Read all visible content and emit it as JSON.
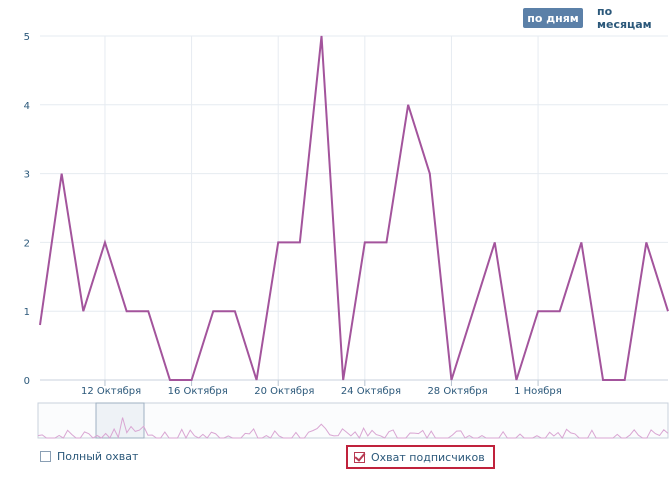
{
  "toggles": {
    "by_day": "по дням",
    "by_month": "по месяцам"
  },
  "legend": {
    "full_reach": {
      "label": "Полный охват",
      "checked": false
    },
    "subscribers_reach": {
      "label": "Охват подписчиков",
      "checked": true
    }
  },
  "colors": {
    "line": "#a3549c",
    "grid": "#e6ebf1",
    "axis_text": "#2b587a",
    "highlight": "#c0223c"
  },
  "chart_data": {
    "type": "line",
    "title": "",
    "xlabel": "",
    "ylabel": "",
    "ylim": [
      0,
      5
    ],
    "y_ticks": [
      "0",
      "1",
      "2",
      "3",
      "4",
      "5"
    ],
    "x_tick_labels": [
      "12 Октября",
      "16 Октября",
      "20 Октября",
      "24 Октября",
      "28 Октября",
      "1 Ноября"
    ],
    "x_tick_index": [
      3,
      7,
      11,
      15,
      19,
      23
    ],
    "grid": true,
    "series": [
      {
        "values": [
          0.8,
          3,
          1,
          2,
          1,
          1,
          0,
          0,
          1,
          1,
          0,
          2,
          2,
          5,
          0,
          2,
          2,
          4,
          3,
          0,
          1,
          2,
          0,
          1,
          1,
          2,
          0,
          0,
          2,
          1
        ]
      }
    ]
  }
}
